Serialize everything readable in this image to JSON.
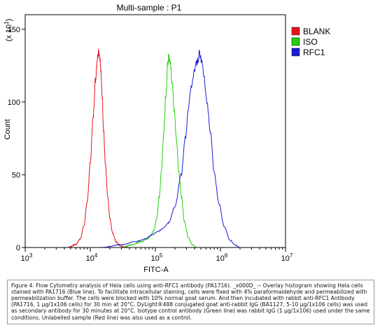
{
  "chart_data": {
    "type": "line",
    "title": "Multi-sample : P1",
    "xlabel": "FITC-A",
    "ylabel": "Count",
    "y_multiplier_label": "(x 10^1)",
    "x_scale": "log",
    "xlim": [
      1000,
      10000000
    ],
    "x_ticks": [
      {
        "value": 1000,
        "base": "10",
        "exp": "3"
      },
      {
        "value": 10000,
        "base": "10",
        "exp": "4"
      },
      {
        "value": 100000,
        "base": "10",
        "exp": "5"
      },
      {
        "value": 1000000,
        "base": "10",
        "exp": "6"
      },
      {
        "value": 10000000,
        "base": "10",
        "exp": "7"
      }
    ],
    "ylim": [
      0,
      160
    ],
    "y_ticks": [
      "0",
      "50",
      "100",
      "150"
    ],
    "y_tick_values": [
      0,
      50,
      100,
      150
    ],
    "legend_position": "top-right",
    "series": [
      {
        "name": "BLANK",
        "color": "#e8141b",
        "x": [
          4500,
          6000,
          7000,
          8000,
          9000,
          10000,
          11000,
          12000,
          12800,
          13500,
          14000,
          14500,
          15200,
          16000,
          17000,
          18500,
          20000,
          22000,
          25000,
          28000,
          32000,
          38000
        ],
        "y": [
          0,
          2,
          6,
          15,
          32,
          58,
          88,
          115,
          130,
          136,
          132,
          122,
          105,
          82,
          58,
          35,
          20,
          10,
          4,
          1.5,
          0.5,
          0
        ]
      },
      {
        "name": "ISO",
        "color": "#22d00a",
        "x": [
          30000,
          45000,
          60000,
          75000,
          85000,
          95000,
          105000,
          115000,
          125000,
          135000,
          145000,
          155000,
          160000,
          170000,
          180000,
          195000,
          210000,
          230000,
          250000,
          280000,
          320000,
          370000,
          430000
        ],
        "y": [
          0,
          2,
          4,
          6,
          8,
          12,
          20,
          35,
          55,
          80,
          105,
          125,
          131,
          127,
          115,
          95,
          75,
          52,
          35,
          18,
          7,
          2,
          0
        ]
      },
      {
        "name": "RFC1",
        "color": "#1a1ed6",
        "x": [
          15000,
          30000,
          50000,
          70000,
          90000,
          110000,
          130000,
          160000,
          200000,
          250000,
          290000,
          320000,
          360000,
          400000,
          440000,
          480000,
          520000,
          560000,
          620000,
          700000,
          800000,
          950000,
          1150000,
          1400000,
          1700000,
          2000000
        ],
        "y": [
          0,
          2,
          4,
          6,
          9,
          11,
          13,
          17,
          28,
          50,
          75,
          95,
          112,
          122,
          128,
          133,
          128,
          118,
          100,
          78,
          52,
          30,
          14,
          5,
          1.5,
          0
        ]
      }
    ]
  },
  "caption": "Figure 4. Flow Cytometry analysis of Hela cells using anti-RFC1 antibody (PA1716). _x000D_ -- Overlay histogram showing Hela cells stained with PA1716 (Blue line). To facilitate intracellular staining, cells were fixed with 4% paraformaldehyde and permeabilized with permeabilization buffer. The cells were blocked with 10% normal goat serum. And then incubated with rabbit anti-RFC1 Antibody (PA1716, 1 µg/1x106 cells) for 30 min at 20°C. DyLight®488 conjugated goat anti-rabbit IgG (BA1127, 5-10 µg/1x106 cells) was used as secondary antibody for 30 minutes at 20°C. Isotype control antibody (Green line) was rabbit IgG (1 µg/1x106) used under the same conditions. Unlabelled sample (Red line) was also used as a control."
}
